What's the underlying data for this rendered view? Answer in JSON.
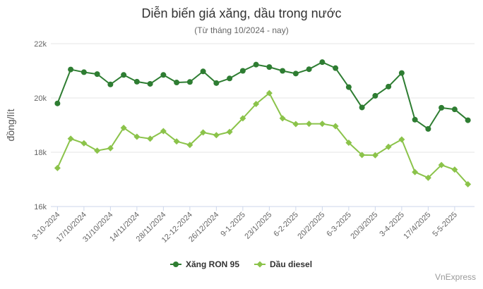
{
  "chart_data": {
    "type": "line",
    "title": "Diễn biến giá xăng, dầu trong nước",
    "subtitle": "(Từ tháng 10/2024 - nay)",
    "ylabel": "đồng/lít",
    "xlabel": "",
    "ylim": [
      16000,
      22000
    ],
    "yticks": [
      16000,
      18000,
      20000,
      22000
    ],
    "ytick_labels": [
      "16k",
      "18k",
      "20k",
      "22k"
    ],
    "grid": true,
    "legend_position": "bottom",
    "x_tick_labels": [
      "3-10-2024",
      "17/10/2024",
      "31/10/2024",
      "14/11/2024",
      "28/11/2024",
      "12-12-2024",
      "26/12/2024",
      "9-1-2025",
      "23/1/2025",
      "6-2-2025",
      "20/2/2025",
      "6-3-2025",
      "20/3/2025",
      "3-4-2025",
      "17/4/2025",
      "5-5-2025"
    ],
    "series": [
      {
        "name": "Xăng RON 95",
        "color": "#2e7d32",
        "marker": "circle",
        "values": [
          19800,
          21050,
          20950,
          20880,
          20500,
          20850,
          20600,
          20520,
          20850,
          20570,
          20590,
          20980,
          20550,
          20720,
          21000,
          21230,
          21140,
          21000,
          20900,
          21060,
          21320,
          21100,
          20400,
          19650,
          20080,
          20420,
          20920,
          19200,
          18860,
          19640,
          19580,
          19180
        ]
      },
      {
        "name": "Dầu diesel",
        "color": "#8bc34a",
        "marker": "diamond",
        "values": [
          17420,
          18500,
          18330,
          18060,
          18150,
          18900,
          18570,
          18500,
          18780,
          18400,
          18270,
          18730,
          18630,
          18750,
          19250,
          19780,
          20180,
          19250,
          19040,
          19050,
          19050,
          18960,
          18350,
          17900,
          17890,
          18200,
          18470,
          17270,
          17060,
          17530,
          17360,
          16820
        ]
      }
    ]
  },
  "credit": "VnExpress"
}
